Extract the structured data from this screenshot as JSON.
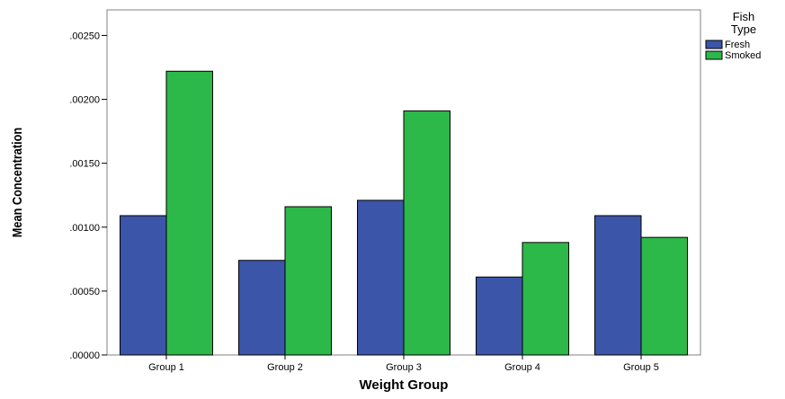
{
  "chart_data": {
    "type": "bar",
    "title": "",
    "xlabel": "Weight Group",
    "ylabel": "Mean Concentration",
    "categories": [
      "Group 1",
      "Group 2",
      "Group 3",
      "Group 4",
      "Group 5"
    ],
    "series": [
      {
        "name": "Fresh",
        "color": "#3b55a9",
        "values": [
          0.00109,
          0.00074,
          0.00121,
          0.00061,
          0.00109
        ]
      },
      {
        "name": "Smoked",
        "color": "#2db84a",
        "values": [
          0.00222,
          0.00116,
          0.00191,
          0.00088,
          0.00092
        ]
      }
    ],
    "ylim": [
      0,
      0.0027
    ],
    "yticks": [
      0,
      0.0005,
      0.001,
      0.0015,
      0.002,
      0.0025
    ],
    "ytick_labels": [
      ".00000",
      ".00050",
      ".00100",
      ".00150",
      ".00200",
      ".00250"
    ],
    "legend": {
      "title_line1": "Fish",
      "title_line2": "Type",
      "placement": "right"
    },
    "grid": false
  }
}
